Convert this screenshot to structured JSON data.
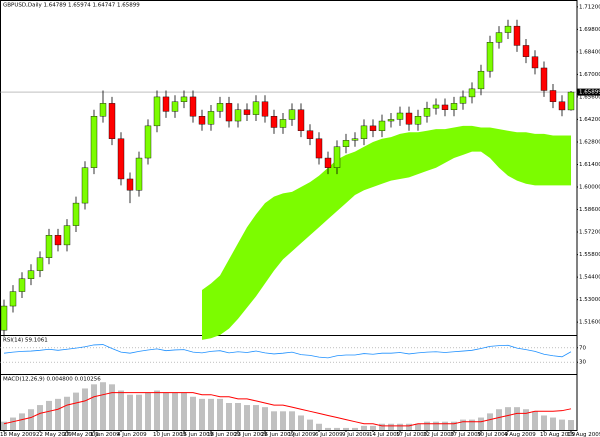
{
  "chart_data": [
    {
      "type": "candlestick",
      "title": "GBPUSD,Daily 1.64789 1.65974 1.64747 1.65899",
      "categories": [
        "18 May 2009",
        null,
        null,
        null,
        "22 May 2009",
        null,
        null,
        "27 May 2009",
        null,
        null,
        "1 Jun 2009",
        null,
        null,
        "4 Jun 2009",
        null,
        null,
        null,
        "10 Jun 2009",
        null,
        null,
        "15 Jun 2009",
        null,
        null,
        "18 Jun 2009",
        null,
        null,
        "23 Jun 2009",
        null,
        null,
        "26 Jun 2009",
        null,
        null,
        "1 Jul 2009",
        null,
        null,
        "6 Jul 2009",
        null,
        null,
        "9 Jul 2009",
        null,
        null,
        "14 Jul 2009",
        null,
        null,
        "17 Jul 2009",
        null,
        null,
        "22 Jul 2009",
        null,
        null,
        "27 Jul 2009",
        null,
        null,
        "30 Jul 2009",
        null,
        null,
        "4 Aug 2009",
        null,
        null,
        null,
        "10 Aug 2009",
        null,
        null,
        "13 Aug 2009"
      ],
      "open": [
        1.511,
        1.526,
        1.535,
        1.543,
        1.548,
        1.556,
        1.57,
        1.564,
        1.576,
        1.59,
        1.612,
        1.644,
        1.652,
        1.63,
        1.605,
        1.598,
        1.618,
        1.638,
        1.656,
        1.647,
        1.653,
        1.656,
        1.644,
        1.639,
        1.647,
        1.652,
        1.641,
        1.648,
        1.645,
        1.653,
        1.644,
        1.637,
        1.642,
        1.648,
        1.635,
        1.63,
        1.618,
        1.612,
        1.625,
        1.629,
        1.63,
        1.638,
        1.635,
        1.641,
        1.642,
        1.646,
        1.639,
        1.644,
        1.649,
        1.651,
        1.648,
        1.652,
        1.656,
        1.661,
        1.672,
        1.69,
        1.696,
        1.7,
        1.688,
        1.681,
        1.674,
        1.66,
        1.653,
        1.6479
      ],
      "high": [
        1.53,
        1.539,
        1.547,
        1.552,
        1.56,
        1.574,
        1.574,
        1.58,
        1.594,
        1.616,
        1.648,
        1.66,
        1.656,
        1.634,
        1.609,
        1.622,
        1.642,
        1.66,
        1.66,
        1.657,
        1.66,
        1.66,
        1.648,
        1.651,
        1.656,
        1.656,
        1.652,
        1.652,
        1.657,
        1.657,
        1.648,
        1.646,
        1.652,
        1.652,
        1.639,
        1.634,
        1.622,
        1.629,
        1.633,
        1.634,
        1.642,
        1.642,
        1.645,
        1.646,
        1.65,
        1.65,
        1.648,
        1.653,
        1.655,
        1.655,
        1.656,
        1.66,
        1.665,
        1.676,
        1.694,
        1.7,
        1.704,
        1.704,
        1.692,
        1.685,
        1.678,
        1.664,
        1.657,
        1.6597
      ],
      "low": [
        1.507,
        1.522,
        1.531,
        1.539,
        1.544,
        1.552,
        1.56,
        1.56,
        1.572,
        1.586,
        1.608,
        1.64,
        1.626,
        1.601,
        1.59,
        1.594,
        1.614,
        1.634,
        1.643,
        1.643,
        1.649,
        1.64,
        1.635,
        1.635,
        1.643,
        1.637,
        1.637,
        1.641,
        1.641,
        1.64,
        1.633,
        1.633,
        1.638,
        1.631,
        1.626,
        1.614,
        1.608,
        1.608,
        1.621,
        1.625,
        1.626,
        1.631,
        1.631,
        1.637,
        1.638,
        1.635,
        1.635,
        1.64,
        1.645,
        1.644,
        1.644,
        1.648,
        1.652,
        1.657,
        1.668,
        1.686,
        1.692,
        1.684,
        1.677,
        1.67,
        1.656,
        1.649,
        1.644,
        1.6475
      ],
      "close": [
        1.526,
        1.535,
        1.543,
        1.548,
        1.556,
        1.57,
        1.564,
        1.576,
        1.59,
        1.612,
        1.644,
        1.652,
        1.63,
        1.605,
        1.598,
        1.618,
        1.638,
        1.656,
        1.647,
        1.653,
        1.656,
        1.644,
        1.639,
        1.647,
        1.652,
        1.641,
        1.648,
        1.645,
        1.653,
        1.644,
        1.637,
        1.642,
        1.648,
        1.635,
        1.63,
        1.618,
        1.612,
        1.625,
        1.629,
        1.63,
        1.638,
        1.635,
        1.641,
        1.642,
        1.646,
        1.639,
        1.644,
        1.649,
        1.651,
        1.648,
        1.652,
        1.656,
        1.661,
        1.672,
        1.69,
        1.696,
        1.7,
        1.688,
        1.681,
        1.674,
        1.66,
        1.653,
        1.6479,
        1.659
      ],
      "up_color": "#7cfc00",
      "down_color": "#ff0000",
      "cloud": {
        "color": "#7cfc00",
        "span_a": [
          null,
          null,
          null,
          null,
          null,
          null,
          null,
          null,
          null,
          null,
          null,
          null,
          null,
          null,
          null,
          null,
          null,
          null,
          null,
          null,
          null,
          null,
          1.536,
          1.54,
          1.545,
          1.555,
          1.565,
          1.575,
          1.583,
          1.59,
          1.594,
          1.596,
          1.597,
          1.6,
          1.603,
          1.607,
          1.612,
          1.617,
          1.62,
          1.622,
          1.625,
          1.628,
          1.63,
          1.631,
          1.633,
          1.634,
          1.634,
          1.635,
          1.636,
          1.636,
          1.637,
          1.638,
          1.638,
          1.637,
          1.637,
          1.636,
          1.635,
          1.634,
          1.634,
          1.633,
          1.633,
          1.632,
          1.632,
          1.632
        ],
        "span_b": [
          null,
          null,
          null,
          null,
          null,
          null,
          null,
          null,
          null,
          null,
          null,
          null,
          null,
          null,
          null,
          null,
          null,
          null,
          null,
          null,
          null,
          null,
          1.505,
          1.506,
          1.508,
          1.512,
          1.518,
          1.525,
          1.532,
          1.54,
          1.548,
          1.555,
          1.56,
          1.565,
          1.57,
          1.575,
          1.58,
          1.585,
          1.59,
          1.595,
          1.598,
          1.6,
          1.602,
          1.604,
          1.605,
          1.606,
          1.608,
          1.61,
          1.612,
          1.615,
          1.618,
          1.62,
          1.622,
          1.622,
          1.618,
          1.612,
          1.607,
          1.604,
          1.602,
          1.601,
          1.601,
          1.601,
          1.601,
          1.601
        ]
      },
      "last_price": {
        "value": 1.65899,
        "label": "1.65899"
      },
      "ylim": [
        1.508,
        1.715
      ],
      "yticks": [
        {
          "value": 1.516,
          "label": "1.51600"
        },
        {
          "value": 1.53,
          "label": "1.53000"
        },
        {
          "value": 1.544,
          "label": "1.54400"
        },
        {
          "value": 1.558,
          "label": "1.55800"
        },
        {
          "value": 1.572,
          "label": "1.57200"
        },
        {
          "value": 1.586,
          "label": "1.58600"
        },
        {
          "value": 1.6,
          "label": "1.60000"
        },
        {
          "value": 1.614,
          "label": "1.61400"
        },
        {
          "value": 1.628,
          "label": "1.62800"
        },
        {
          "value": 1.642,
          "label": "1.64200"
        },
        {
          "value": 1.656,
          "label": "1.65600"
        },
        {
          "value": 1.67,
          "label": "1.67000"
        },
        {
          "value": 1.684,
          "label": "1.68400"
        },
        {
          "value": 1.698,
          "label": "1.69800"
        },
        {
          "value": 1.712,
          "label": "1.71200"
        }
      ],
      "grid": false
    },
    {
      "type": "line",
      "title": "RSI(14) 59.1061",
      "color": "#1e90ff",
      "values": [
        55,
        58,
        60,
        61,
        63,
        66,
        63,
        66,
        69,
        73,
        78,
        79,
        68,
        58,
        55,
        60,
        64,
        67,
        62,
        64,
        65,
        58,
        56,
        60,
        62,
        56,
        59,
        57,
        61,
        56,
        53,
        55,
        58,
        51,
        49,
        44,
        42,
        48,
        50,
        50,
        54,
        52,
        55,
        55,
        57,
        53,
        56,
        58,
        59,
        57,
        59,
        61,
        63,
        68,
        74,
        76,
        77,
        69,
        65,
        60,
        52,
        48,
        45,
        59
      ],
      "ylim": [
        0,
        100
      ],
      "yticks": [
        30,
        70
      ]
    },
    {
      "type": "bar",
      "title": "MACD(12,26,9) 0.004800 0.010256",
      "color": "#c0c0c0",
      "signal_color": "#ff0000",
      "values": [
        0.004,
        0.006,
        0.008,
        0.01,
        0.012,
        0.014,
        0.015,
        0.016,
        0.018,
        0.02,
        0.022,
        0.023,
        0.022,
        0.019,
        0.017,
        0.017,
        0.018,
        0.019,
        0.018,
        0.018,
        0.018,
        0.016,
        0.015,
        0.015,
        0.015,
        0.013,
        0.013,
        0.012,
        0.012,
        0.011,
        0.009,
        0.009,
        0.009,
        0.007,
        0.005,
        0.003,
        0.001,
        0.001,
        0.001,
        0.001,
        0.002,
        0.002,
        0.003,
        0.003,
        0.003,
        0.003,
        0.003,
        0.004,
        0.004,
        0.004,
        0.004,
        0.005,
        0.005,
        0.006,
        0.008,
        0.01,
        0.011,
        0.011,
        0.01,
        0.009,
        0.007,
        0.006,
        0.005,
        0.0048
      ],
      "signal_values": [
        0.003,
        0.004,
        0.005,
        0.006,
        0.008,
        0.009,
        0.01,
        0.012,
        0.013,
        0.014,
        0.016,
        0.017,
        0.018,
        0.018,
        0.018,
        0.018,
        0.018,
        0.018,
        0.018,
        0.018,
        0.018,
        0.018,
        0.017,
        0.017,
        0.016,
        0.016,
        0.015,
        0.015,
        0.014,
        0.013,
        0.012,
        0.012,
        0.011,
        0.01,
        0.009,
        0.008,
        0.007,
        0.006,
        0.005,
        0.004,
        0.003,
        0.003,
        0.002,
        0.002,
        0.002,
        0.002,
        0.003,
        0.003,
        0.003,
        0.003,
        0.003,
        0.004,
        0.004,
        0.004,
        0.005,
        0.006,
        0.007,
        0.008,
        0.008,
        0.009,
        0.009,
        0.009,
        0.0093,
        0.0102
      ],
      "ylim": [
        0,
        0.026
      ]
    }
  ]
}
